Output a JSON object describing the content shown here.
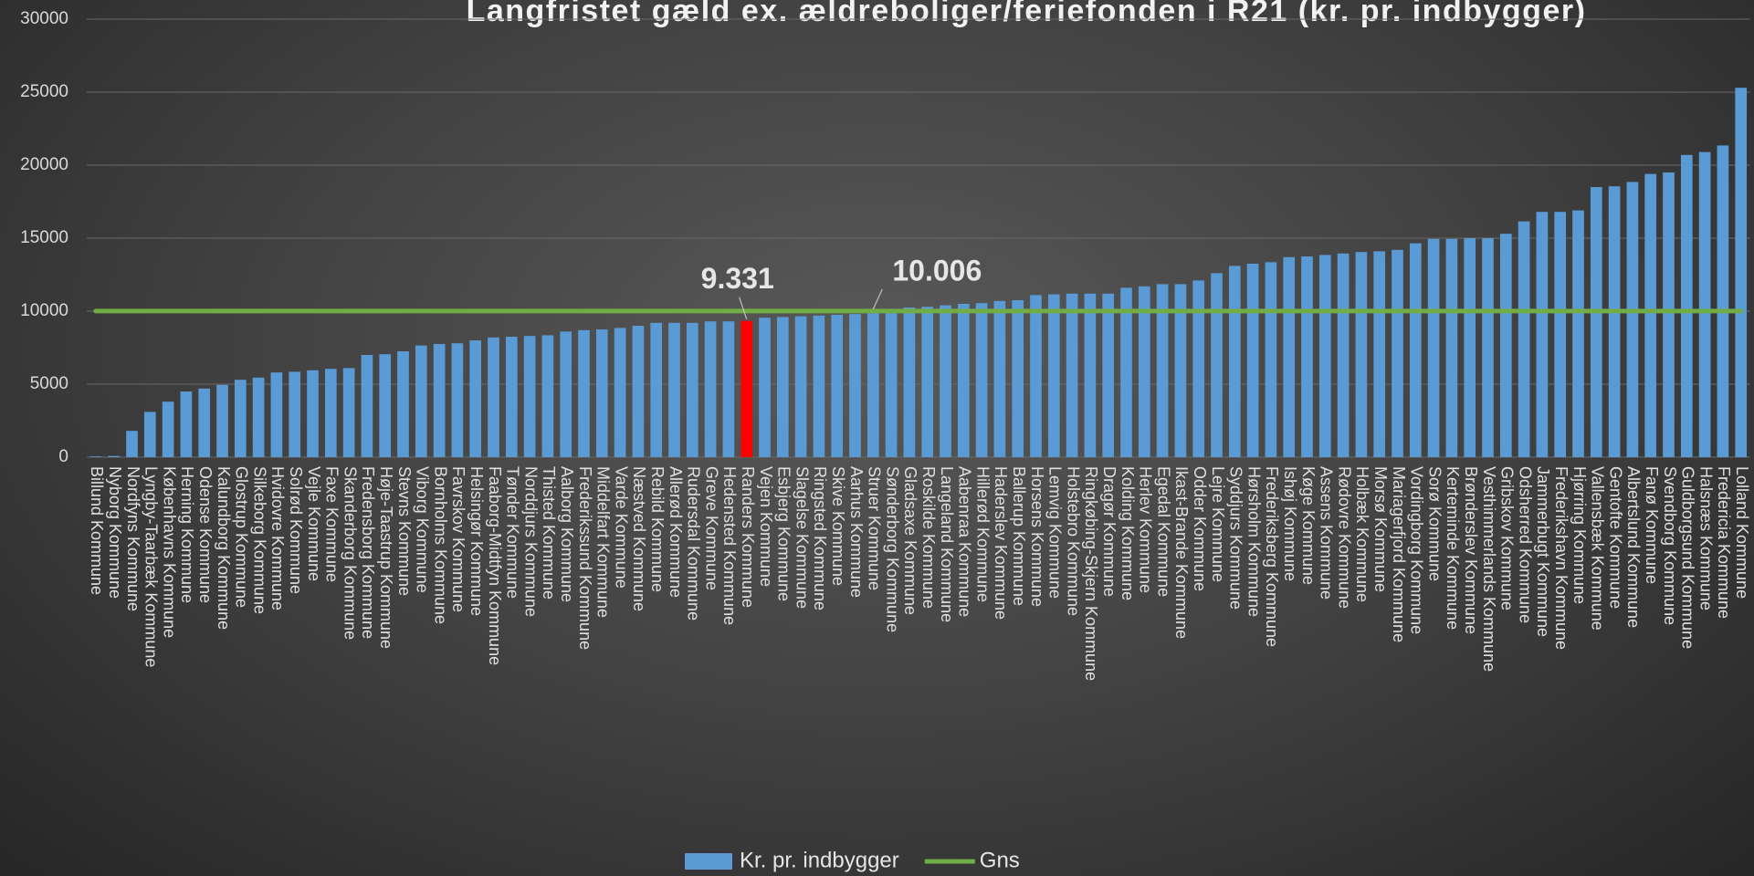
{
  "chart_data": {
    "type": "bar",
    "title": "Langfristet gæld ex. ældreboliger/feriefonden i R21 (kr. pr. indbygger)",
    "categories": [
      "Billund Kommune",
      "Nyborg Kommune",
      "Nordfyns Kommune",
      "Lyngby-Taarbæk Kommune",
      "Københavns Kommune",
      "Herning Kommune",
      "Odense Kommune",
      "Kalundborg Kommune",
      "Glostrup Kommune",
      "Silkeborg Kommune",
      "Hvidovre Kommune",
      "Solrød Kommune",
      "Vejle Kommune",
      "Faxe Kommune",
      "Skanderborg Kommune",
      "Fredensborg Kommune",
      "Høje-Taastrup Kommune",
      "Stevns Kommune",
      "Viborg Kommune",
      "Bornholms Kommune",
      "Favrskov Kommune",
      "Helsingør Kommune",
      "Faaborg-Midtfyn Kommune",
      "Tønder Kommune",
      "Norddjurs Kommune",
      "Thisted Kommune",
      "Aalborg Kommune",
      "Frederikssund Kommune",
      "Middelfart Kommune",
      "Varde Kommune",
      "Næstved Kommune",
      "Rebild Kommune",
      "Allerød Kommune",
      "Rudersdal Kommune",
      "Greve Kommune",
      "Hedensted Kommune",
      "Randers Kommune",
      "Vejen Kommune",
      "Esbjerg Kommune",
      "Slagelse Kommune",
      "Ringsted Kommune",
      "Skive Kommune",
      "Aarhus Kommune",
      "Struer Kommune",
      "Sønderborg Kommune",
      "Gladsaxe Kommune",
      "Roskilde Kommune",
      "Langeland Kommune",
      "Aabenraa Kommune",
      "Hillerød Kommune",
      "Haderslev Kommune",
      "Ballerup Kommune",
      "Horsens Kommune",
      "Lemvig Kommune",
      "Holstebro Kommune",
      "Ringkøbing-Skjern Kommune",
      "Dragør Kommune",
      "Kolding Kommune",
      "Herlev Kommune",
      "Egedal Kommune",
      "Ikast-Brande Kommune",
      "Odder Kommune",
      "Lejre Kommune",
      "Syddjurs Kommune",
      "Hørsholm Kommune",
      "Frederiksberg Kommune",
      "Ishøj Kommune",
      "Køge Kommune",
      "Assens Kommune",
      "Rødovre Kommune",
      "Holbæk Kommune",
      "Morsø Kommune",
      "Mariagerfjord Kommune",
      "Vordingborg Kommune",
      "Sorø Kommune",
      "Kerteminde Kommune",
      "Brønderslev Kommune",
      "Vesthimmerlands Kommune",
      "Gribskov Kommune",
      "Odsherred Kommune",
      "Jammerbugt Kommune",
      "Frederikshavn Kommune",
      "Hjørring Kommune",
      "Vallensbæk Kommune",
      "Gentofte Kommune",
      "Albertslund Kommune",
      "Fanø Kommune",
      "Svendborg Kommune",
      "Guldborgsund Kommune",
      "Halsnæs Kommune",
      "Fredericia Kommune",
      "Lolland Kommune"
    ],
    "series": [
      {
        "name": "Kr. pr. indbygger",
        "type": "bar",
        "color": "#5b9bd5",
        "colors": [
          "#5b9bd5",
          "#5b9bd5",
          "#5b9bd5",
          "#5b9bd5",
          "#5b9bd5",
          "#5b9bd5",
          "#5b9bd5",
          "#5b9bd5",
          "#5b9bd5",
          "#5b9bd5",
          "#5b9bd5",
          "#5b9bd5",
          "#5b9bd5",
          "#5b9bd5",
          "#5b9bd5",
          "#5b9bd5",
          "#5b9bd5",
          "#5b9bd5",
          "#5b9bd5",
          "#5b9bd5",
          "#5b9bd5",
          "#5b9bd5",
          "#5b9bd5",
          "#5b9bd5",
          "#5b9bd5",
          "#5b9bd5",
          "#5b9bd5",
          "#5b9bd5",
          "#5b9bd5",
          "#5b9bd5",
          "#5b9bd5",
          "#5b9bd5",
          "#5b9bd5",
          "#5b9bd5",
          "#5b9bd5",
          "#5b9bd5",
          "#ff0000",
          "#5b9bd5",
          "#5b9bd5",
          "#5b9bd5",
          "#5b9bd5",
          "#5b9bd5",
          "#5b9bd5",
          "#5b9bd5",
          "#5b9bd5",
          "#5b9bd5",
          "#5b9bd5",
          "#5b9bd5",
          "#5b9bd5",
          "#5b9bd5",
          "#5b9bd5",
          "#5b9bd5",
          "#5b9bd5",
          "#5b9bd5",
          "#5b9bd5",
          "#5b9bd5",
          "#5b9bd5",
          "#5b9bd5",
          "#5b9bd5",
          "#5b9bd5",
          "#5b9bd5",
          "#5b9bd5",
          "#5b9bd5",
          "#5b9bd5",
          "#5b9bd5",
          "#5b9bd5",
          "#5b9bd5",
          "#5b9bd5",
          "#5b9bd5",
          "#5b9bd5",
          "#5b9bd5",
          "#5b9bd5",
          "#5b9bd5",
          "#5b9bd5",
          "#5b9bd5",
          "#5b9bd5",
          "#5b9bd5",
          "#5b9bd5",
          "#5b9bd5",
          "#5b9bd5",
          "#5b9bd5",
          "#5b9bd5",
          "#5b9bd5",
          "#5b9bd5",
          "#5b9bd5",
          "#5b9bd5",
          "#5b9bd5",
          "#5b9bd5",
          "#5b9bd5",
          "#5b9bd5",
          "#5b9bd5",
          "#5b9bd5"
        ],
        "values": [
          50,
          80,
          1800,
          3100,
          3800,
          4500,
          4700,
          4950,
          5300,
          5450,
          5800,
          5850,
          5950,
          6050,
          6100,
          7000,
          7050,
          7250,
          7650,
          7750,
          7800,
          8000,
          8200,
          8250,
          8300,
          8350,
          8600,
          8700,
          8750,
          8850,
          9000,
          9200,
          9200,
          9200,
          9300,
          9300,
          9331,
          9550,
          9600,
          9650,
          9700,
          9750,
          9800,
          9850,
          10000,
          10250,
          10300,
          10400,
          10500,
          10550,
          10700,
          10750,
          11100,
          11150,
          11200,
          11200,
          11200,
          11600,
          11700,
          11850,
          11850,
          12100,
          12600,
          13100,
          13250,
          13350,
          13700,
          13750,
          13850,
          13950,
          14050,
          14100,
          14200,
          14650,
          14950,
          14950,
          15000,
          15000,
          15300,
          16150,
          16800,
          16800,
          16900,
          18500,
          18550,
          18850,
          19400,
          19500,
          20700,
          20900,
          21350,
          25300
        ],
        "value_labels": [
          null,
          null,
          null,
          null,
          null,
          null,
          null,
          null,
          null,
          null,
          null,
          null,
          null,
          null,
          null,
          null,
          null,
          null,
          null,
          null,
          null,
          null,
          null,
          null,
          null,
          null,
          null,
          null,
          null,
          null,
          null,
          null,
          null,
          null,
          null,
          null,
          "9.331",
          null,
          null,
          null,
          null,
          null,
          null,
          null,
          null,
          null,
          null,
          null,
          null,
          null,
          null,
          null,
          null,
          null,
          null,
          null,
          null,
          null,
          null,
          null,
          null,
          null,
          null,
          null,
          null,
          null,
          null,
          null,
          null,
          null,
          null,
          null,
          null,
          null,
          null,
          null,
          null,
          null,
          null,
          null,
          null,
          null,
          null,
          null,
          null,
          null,
          null,
          null,
          null,
          null,
          null,
          null
        ]
      },
      {
        "name": "Gns",
        "type": "line",
        "color": "#70ad47",
        "values": [
          10006,
          10006,
          10006,
          10006,
          10006,
          10006,
          10006,
          10006,
          10006,
          10006,
          10006,
          10006,
          10006,
          10006,
          10006,
          10006,
          10006,
          10006,
          10006,
          10006,
          10006,
          10006,
          10006,
          10006,
          10006,
          10006,
          10006,
          10006,
          10006,
          10006,
          10006,
          10006,
          10006,
          10006,
          10006,
          10006,
          10006,
          10006,
          10006,
          10006,
          10006,
          10006,
          10006,
          10006,
          10006,
          10006,
          10006,
          10006,
          10006,
          10006,
          10006,
          10006,
          10006,
          10006,
          10006,
          10006,
          10006,
          10006,
          10006,
          10006,
          10006,
          10006,
          10006,
          10006,
          10006,
          10006,
          10006,
          10006,
          10006,
          10006,
          10006,
          10006,
          10006,
          10006,
          10006,
          10006,
          10006,
          10006,
          10006,
          10006,
          10006,
          10006,
          10006,
          10006,
          10006,
          10006,
          10006,
          10006,
          10006,
          10006,
          10006,
          10006
        ],
        "value_labels": [
          null,
          null,
          null,
          null,
          null,
          null,
          null,
          null,
          null,
          null,
          null,
          null,
          null,
          null,
          null,
          null,
          null,
          null,
          null,
          null,
          null,
          null,
          null,
          null,
          null,
          null,
          null,
          null,
          null,
          null,
          null,
          null,
          null,
          null,
          null,
          null,
          null,
          null,
          null,
          null,
          null,
          null,
          null,
          "10.006",
          null,
          null,
          null,
          null,
          null,
          null,
          null,
          null,
          null,
          null,
          null,
          null,
          null,
          null,
          null,
          null,
          null,
          null,
          null,
          null,
          null,
          null,
          null,
          null,
          null,
          null,
          null,
          null,
          null,
          null,
          null,
          null,
          null,
          null,
          null,
          null,
          null,
          null,
          null,
          null,
          null,
          null,
          null,
          null,
          null,
          null,
          null,
          null
        ]
      }
    ],
    "ylim": [
      0,
      30000
    ],
    "yticks": [
      0,
      5000,
      10000,
      15000,
      20000,
      25000,
      30000
    ],
    "grid": true,
    "legend": "bottom"
  }
}
